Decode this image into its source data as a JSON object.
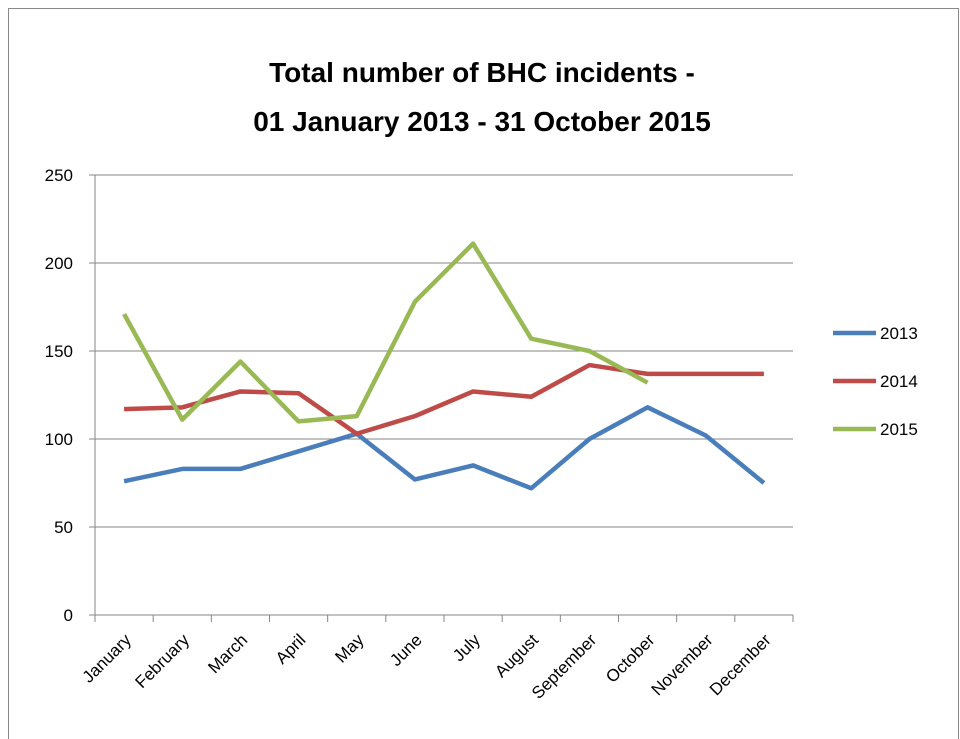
{
  "chart_data": {
    "type": "line",
    "title": [
      "Total number of BHC incidents -",
      "01 January 2013 - 31 October 2015"
    ],
    "categories": [
      "January",
      "February",
      "March",
      "April",
      "May",
      "June",
      "July",
      "August",
      "September",
      "October",
      "November",
      "December"
    ],
    "series": [
      {
        "name": "2013",
        "color": "#4a7ebb",
        "values": [
          76,
          83,
          83,
          93,
          103,
          77,
          85,
          72,
          100,
          118,
          102,
          75
        ]
      },
      {
        "name": "2014",
        "color": "#be4b48",
        "values": [
          117,
          118,
          127,
          126,
          103,
          113,
          127,
          124,
          142,
          137,
          137,
          137
        ]
      },
      {
        "name": "2015",
        "color": "#98b954",
        "values": [
          171,
          111,
          144,
          110,
          113,
          178,
          211,
          157,
          150,
          132,
          null,
          null
        ]
      }
    ],
    "ylim": [
      0,
      250
    ],
    "yticks": [
      0,
      50,
      100,
      150,
      200,
      250
    ],
    "grid": true,
    "legend": "right"
  }
}
